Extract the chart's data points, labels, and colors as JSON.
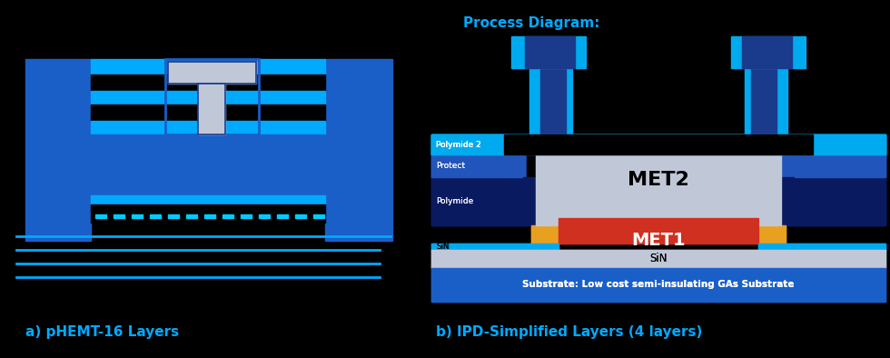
{
  "bg_color": "#000000",
  "label_a": "a) pHEMT-16 Layers",
  "label_b": "b) IPD-Simplified Layers (4 layers)",
  "process_title": "Process Diagram:",
  "colors": {
    "blue_mid": "#1a5fc8",
    "blue_bright": "#00aaff",
    "blue_dark": "#1a3a8c",
    "blue_deep": "#0a1a60",
    "gray_light": "#c0c8d8",
    "orange": "#e8a020",
    "red": "#d03020",
    "cyan": "#00aaee",
    "cyan_bright": "#00ccff",
    "white": "#ffffff",
    "black": "#000000",
    "blue_medium2": "#2255bb",
    "blue_top": "#2277dd"
  },
  "met1_label": "MET1",
  "met2_label": "MET2",
  "sin_label": "SiN",
  "substrate_label": "Substrate: Low cost semi-insulating GAs Substrate",
  "polymide2_label": "Polymide 2",
  "protect_label": "Protect",
  "polymide_label": "Polymide",
  "sin_left_label": "SiN"
}
